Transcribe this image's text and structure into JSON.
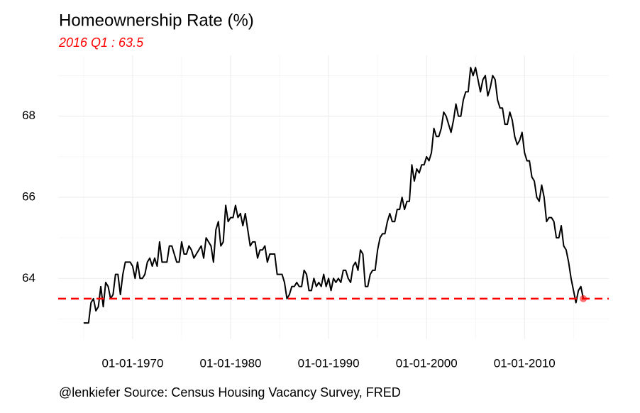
{
  "chart_data": {
    "type": "line",
    "title": "Homeownership Rate (%)",
    "subtitle": "2016 Q1 : 63.5",
    "caption": "@lenkiefer Source: Census Housing Vacancy Survey, FRED",
    "color": "#000000",
    "highlight_color": "#ff0000",
    "hline": 63.5,
    "grid": true,
    "x": [
      1965,
      1965.25,
      1965.5,
      1965.75,
      1966,
      1966.25,
      1966.5,
      1966.75,
      1967,
      1967.25,
      1967.5,
      1967.75,
      1968,
      1968.25,
      1968.5,
      1968.75,
      1969,
      1969.25,
      1969.5,
      1969.75,
      1970,
      1970.25,
      1970.5,
      1970.75,
      1971,
      1971.25,
      1971.5,
      1971.75,
      1972,
      1972.25,
      1972.5,
      1972.75,
      1973,
      1973.25,
      1973.5,
      1973.75,
      1974,
      1974.25,
      1974.5,
      1974.75,
      1975,
      1975.25,
      1975.5,
      1975.75,
      1976,
      1976.25,
      1976.5,
      1976.75,
      1977,
      1977.25,
      1977.5,
      1977.75,
      1978,
      1978.25,
      1978.5,
      1978.75,
      1979,
      1979.25,
      1979.5,
      1979.75,
      1980,
      1980.25,
      1980.5,
      1980.75,
      1981,
      1981.25,
      1981.5,
      1981.75,
      1982,
      1982.25,
      1982.5,
      1982.75,
      1983,
      1983.25,
      1983.5,
      1983.75,
      1984,
      1984.25,
      1984.5,
      1984.75,
      1985,
      1985.25,
      1985.5,
      1985.75,
      1986,
      1986.25,
      1986.5,
      1986.75,
      1987,
      1987.25,
      1987.5,
      1987.75,
      1988,
      1988.25,
      1988.5,
      1988.75,
      1989,
      1989.25,
      1989.5,
      1989.75,
      1990,
      1990.25,
      1990.5,
      1990.75,
      1991,
      1991.25,
      1991.5,
      1991.75,
      1992,
      1992.25,
      1992.5,
      1992.75,
      1993,
      1993.25,
      1993.5,
      1993.75,
      1994,
      1994.25,
      1994.5,
      1994.75,
      1995,
      1995.25,
      1995.5,
      1995.75,
      1996,
      1996.25,
      1996.5,
      1996.75,
      1997,
      1997.25,
      1997.5,
      1997.75,
      1998,
      1998.25,
      1998.5,
      1998.75,
      1999,
      1999.25,
      1999.5,
      1999.75,
      2000,
      2000.25,
      2000.5,
      2000.75,
      2001,
      2001.25,
      2001.5,
      2001.75,
      2002,
      2002.25,
      2002.5,
      2002.75,
      2003,
      2003.25,
      2003.5,
      2003.75,
      2004,
      2004.25,
      2004.5,
      2004.75,
      2005,
      2005.25,
      2005.5,
      2005.75,
      2006,
      2006.25,
      2006.5,
      2006.75,
      2007,
      2007.25,
      2007.5,
      2007.75,
      2008,
      2008.25,
      2008.5,
      2008.75,
      2009,
      2009.25,
      2009.5,
      2009.75,
      2010,
      2010.25,
      2010.5,
      2010.75,
      2011,
      2011.25,
      2011.5,
      2011.75,
      2012,
      2012.25,
      2012.5,
      2012.75,
      2013,
      2013.25,
      2013.5,
      2013.75,
      2014,
      2014.25,
      2014.5,
      2014.75,
      2015,
      2015.25,
      2015.5,
      2015.75,
      2016
    ],
    "values": [
      62.9,
      62.9,
      62.9,
      63.4,
      63.5,
      63.2,
      63.3,
      63.8,
      63.3,
      63.9,
      63.8,
      63.5,
      63.6,
      64.1,
      64.1,
      63.6,
      64.1,
      64.4,
      64.4,
      64.4,
      64.3,
      64.0,
      64.4,
      64.0,
      64.0,
      64.1,
      64.4,
      64.5,
      64.3,
      64.5,
      64.3,
      64.9,
      64.4,
      64.4,
      64.4,
      64.8,
      64.8,
      64.6,
      64.4,
      64.4,
      64.9,
      64.6,
      64.6,
      64.8,
      64.7,
      64.5,
      64.6,
      64.7,
      64.8,
      64.5,
      65.0,
      64.9,
      64.8,
      64.4,
      65.2,
      65.4,
      64.8,
      64.9,
      65.8,
      65.4,
      65.5,
      65.5,
      65.8,
      65.5,
      65.6,
      65.3,
      65.6,
      65.2,
      64.8,
      64.9,
      64.9,
      64.5,
      64.7,
      64.7,
      64.8,
      64.4,
      64.6,
      64.6,
      64.6,
      64.1,
      64.1,
      64.1,
      63.9,
      63.5,
      63.6,
      63.8,
      63.8,
      63.9,
      63.8,
      63.8,
      64.2,
      64.1,
      63.7,
      63.7,
      64.0,
      63.8,
      63.9,
      63.8,
      64.1,
      63.8,
      64.0,
      63.7,
      64.0,
      63.9,
      64.0,
      63.9,
      64.2,
      64.2,
      64.0,
      63.9,
      64.3,
      64.4,
      64.2,
      64.7,
      64.6,
      63.8,
      63.8,
      64.1,
      64.2,
      64.2,
      64.7,
      65.0,
      65.1,
      65.1,
      65.4,
      65.6,
      65.4,
      65.4,
      65.7,
      65.7,
      66.0,
      65.7,
      65.9,
      65.9,
      66.8,
      66.4,
      66.7,
      66.6,
      66.8,
      66.8,
      67.0,
      66.9,
      67.1,
      67.7,
      67.5,
      67.5,
      67.7,
      68.1,
      68.0,
      67.8,
      67.6,
      67.9,
      68.3,
      68.0,
      68.0,
      68.4,
      68.6,
      68.6,
      69.2,
      69.0,
      69.2,
      68.9,
      68.6,
      68.9,
      69.0,
      68.5,
      68.7,
      69.0,
      68.9,
      68.4,
      68.2,
      68.2,
      67.8,
      67.8,
      68.1,
      67.9,
      67.5,
      67.3,
      67.4,
      67.6,
      67.1,
      66.9,
      66.9,
      66.5,
      66.4,
      66.0,
      65.9,
      66.3,
      66.0,
      65.4,
      65.5,
      65.5,
      65.4,
      65.0,
      65.0,
      65.3,
      64.8,
      64.7,
      64.4,
      64.0,
      63.7,
      63.4,
      63.7,
      63.8,
      63.5
    ],
    "xlim": [
      1962.4,
      2018.6
    ],
    "ylim": [
      62.5,
      69.5
    ],
    "xticks": [
      {
        "value": 1970,
        "label": "01-01-1970"
      },
      {
        "value": 1980,
        "label": "01-01-1980"
      },
      {
        "value": 1990,
        "label": "01-01-1990"
      },
      {
        "value": 2000,
        "label": "01-01-2000"
      },
      {
        "value": 2010,
        "label": "01-01-2010"
      }
    ],
    "xminor_ticks": [
      1965,
      1975,
      1985,
      1995,
      2005,
      2015
    ],
    "yticks": [
      64,
      66,
      68
    ],
    "yminor_ticks": [
      63,
      65,
      67,
      69
    ]
  }
}
